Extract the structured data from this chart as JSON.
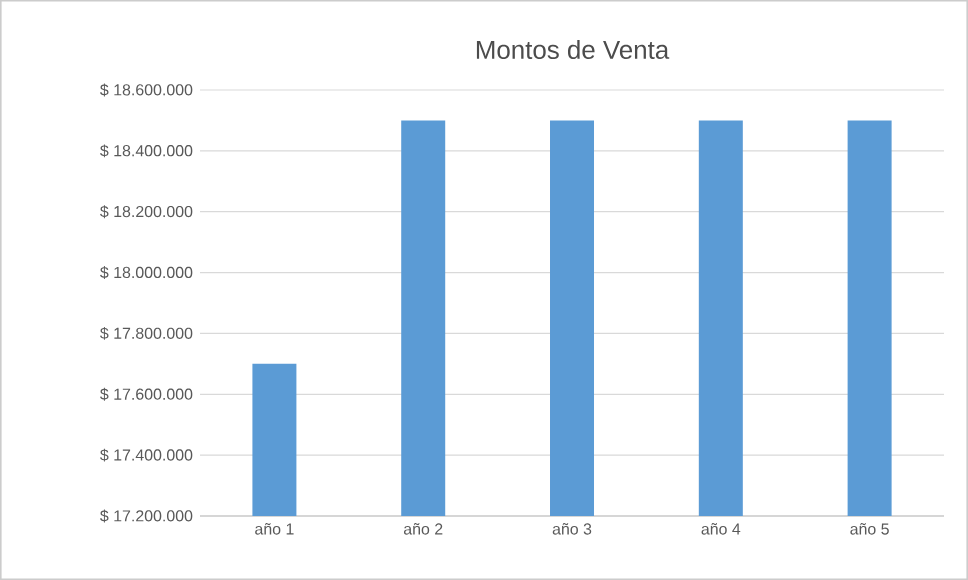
{
  "chart_data": {
    "type": "bar",
    "title": "Montos de Venta",
    "categories": [
      "año 1",
      "año 2",
      "año 3",
      "año 4",
      "año 5"
    ],
    "values": [
      17700000,
      18500000,
      18500000,
      18500000,
      18500000
    ],
    "color": "#5b9bd5",
    "ylim": [
      17200000,
      18600000
    ],
    "yticks": [
      {
        "value": 17200000,
        "label": "$ 17.200.000"
      },
      {
        "value": 17400000,
        "label": "$ 17.400.000"
      },
      {
        "value": 17600000,
        "label": "$ 17.600.000"
      },
      {
        "value": 17800000,
        "label": "$ 17.800.000"
      },
      {
        "value": 18000000,
        "label": "$ 18.000.000"
      },
      {
        "value": 18200000,
        "label": "$ 18.200.000"
      },
      {
        "value": 18400000,
        "label": "$ 18.400.000"
      },
      {
        "value": 18600000,
        "label": "$ 18.600.000"
      }
    ],
    "grid": true
  }
}
